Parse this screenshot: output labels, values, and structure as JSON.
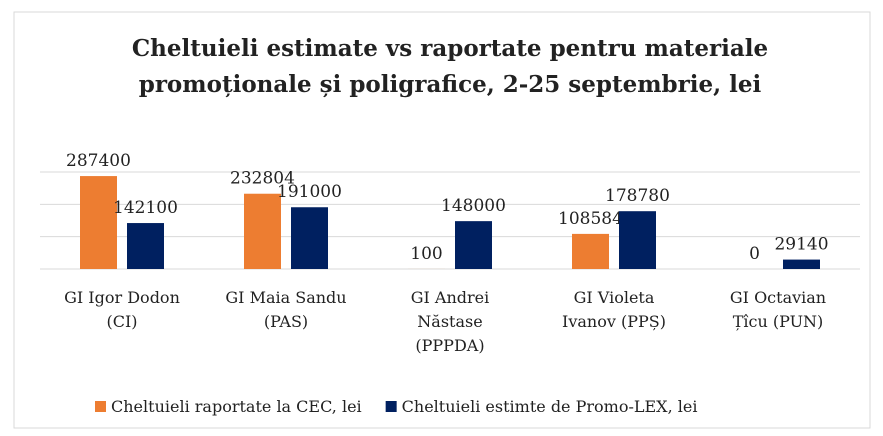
{
  "chart_data": {
    "type": "bar",
    "title": "Cheltuieli estimate vs raportate pentru materiale",
    "subtitle": "promoționale și poligrafice, 2-25 septembrie, lei",
    "categories": [
      "GI Igor Dodon\n(CI)",
      "GI Maia Sandu\n(PAS)",
      "GI Andrei\nNăstase\n(PPPDA)",
      "GI Violeta\nIvanov (PPȘ)",
      "GI Octavian\nȚîcu (PUN)"
    ],
    "series": [
      {
        "name": "Cheltuieli raportate la CEC, lei",
        "color": "#ed7d31",
        "values": [
          287400,
          232804,
          100,
          108584,
          0
        ]
      },
      {
        "name": "Cheltuieli estimte de Promo-LEX, lei",
        "color": "#002060",
        "values": [
          142100,
          191000,
          148000,
          178780,
          29140
        ]
      }
    ],
    "ylim": [
      0,
      300000
    ],
    "yticks": [
      0,
      100000,
      200000,
      300000
    ],
    "grid": true,
    "legend": "bottom"
  }
}
